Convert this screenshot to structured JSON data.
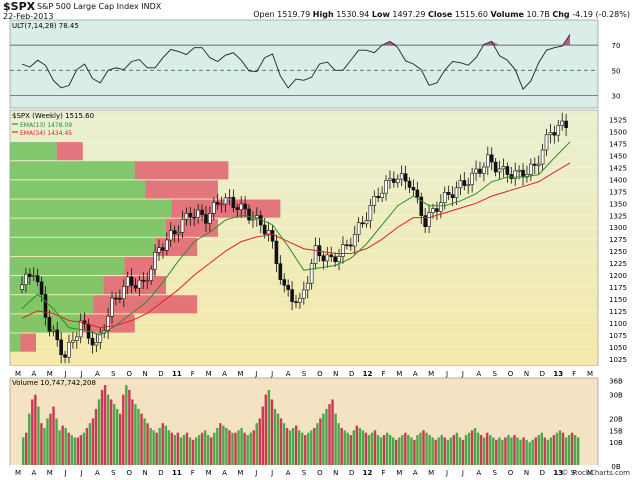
{
  "header": {
    "symbol": "$SPX",
    "description": "S&P 500 Large Cap Index INDX",
    "date": "22-Feb-2013",
    "quote": {
      "open_label": "Open",
      "open": "1519.79",
      "high_label": "High",
      "high": "1530.94",
      "low_label": "Low",
      "low": "1497.29",
      "close_label": "Close",
      "close": "1515.60",
      "volume_label": "Volume",
      "volume": "10.7B",
      "chg_label": "Chg",
      "chg": "-4.19 (-0.28%)"
    },
    "copyright": "© StockCharts.com"
  },
  "colors": {
    "panel_top_bg": "#d9ede9",
    "price_bg_top": "#e8f0d2",
    "price_bg_bottom": "#f5e8a8",
    "vol_bg": "#f4e3c2",
    "candle": "#111111",
    "ema13": "#2e8a2e",
    "ema34": "#e02020",
    "vbp_up": "#6fbf5b",
    "vbp_down": "#e06070",
    "vol_up": "#4aa84a",
    "vol_down": "#c83a56",
    "ult_fill": "#a8406c"
  },
  "chart_data": [
    {
      "type": "line",
      "panel": "indicator",
      "title": "ULT(7,14,28) 78.45",
      "ylim": [
        20,
        90
      ],
      "reference_lines": [
        30,
        50,
        70
      ],
      "tick_labels": [
        "70",
        "50",
        "30"
      ],
      "x": [
        "2010-03",
        "2010-04",
        "2010-05",
        "2010-06",
        "2010-07",
        "2010-08",
        "2010-09",
        "2010-10",
        "2010-11",
        "2010-12",
        "2011-01",
        "2011-02",
        "2011-03",
        "2011-04",
        "2011-05",
        "2011-06",
        "2011-07",
        "2011-08",
        "2011-09",
        "2011-10",
        "2011-11",
        "2011-12",
        "2012-01",
        "2012-02",
        "2012-03",
        "2012-04",
        "2012-05",
        "2012-06",
        "2012-07",
        "2012-08",
        "2012-09",
        "2012-10",
        "2012-11",
        "2012-12",
        "2013-01",
        "2013-02"
      ],
      "series": [
        {
          "values": [
            55,
            58,
            42,
            38,
            55,
            40,
            52,
            57,
            52,
            60,
            65,
            68,
            60,
            62,
            58,
            49,
            63,
            36,
            42,
            55,
            50,
            58,
            66,
            70,
            68,
            55,
            38,
            50,
            56,
            60,
            73,
            58,
            35,
            56,
            68,
            78.45
          ]
        }
      ]
    },
    {
      "type": "candlestick",
      "panel": "price",
      "title": "$SPX (Weekly) 1515.60",
      "legend": [
        {
          "name": "EMA(13) 1478.09",
          "color": "#2e8a2e"
        },
        {
          "name": "EMA(34) 1434.45",
          "color": "#e02020"
        }
      ],
      "ylim": [
        1010,
        1545
      ],
      "y_ticks": [
        1525,
        1500,
        1475,
        1450,
        1425,
        1400,
        1375,
        1350,
        1325,
        1300,
        1275,
        1250,
        1225,
        1200,
        1175,
        1150,
        1125,
        1100,
        1075,
        1050,
        1025
      ],
      "x": [
        "2010-03",
        "2010-04",
        "2010-05",
        "2010-06",
        "2010-07",
        "2010-08",
        "2010-09",
        "2010-10",
        "2010-11",
        "2010-12",
        "2011-01",
        "2011-02",
        "2011-03",
        "2011-04",
        "2011-05",
        "2011-06",
        "2011-07",
        "2011-08",
        "2011-09",
        "2011-10",
        "2011-11",
        "2011-12",
        "2012-01",
        "2012-02",
        "2012-03",
        "2012-04",
        "2012-05",
        "2012-06",
        "2012-07",
        "2012-08",
        "2012-09",
        "2012-10",
        "2012-11",
        "2012-12",
        "2013-01",
        "2013-02"
      ],
      "close": [
        1170,
        1210,
        1090,
        1030,
        1100,
        1050,
        1140,
        1185,
        1180,
        1255,
        1290,
        1330,
        1320,
        1360,
        1345,
        1320,
        1290,
        1170,
        1140,
        1250,
        1230,
        1260,
        1310,
        1370,
        1405,
        1395,
        1310,
        1355,
        1380,
        1405,
        1440,
        1415,
        1410,
        1425,
        1500,
        1515.6
      ],
      "ema13": [
        1130,
        1160,
        1130,
        1090,
        1085,
        1075,
        1095,
        1120,
        1145,
        1185,
        1230,
        1270,
        1290,
        1315,
        1325,
        1320,
        1305,
        1260,
        1210,
        1215,
        1220,
        1235,
        1265,
        1305,
        1345,
        1365,
        1345,
        1345,
        1355,
        1370,
        1395,
        1405,
        1405,
        1410,
        1445,
        1478.09
      ],
      "ema34": [
        1110,
        1125,
        1120,
        1105,
        1100,
        1090,
        1095,
        1105,
        1120,
        1145,
        1170,
        1200,
        1225,
        1250,
        1270,
        1280,
        1285,
        1270,
        1255,
        1250,
        1245,
        1245,
        1255,
        1275,
        1300,
        1320,
        1320,
        1330,
        1340,
        1350,
        1365,
        1375,
        1385,
        1395,
        1415,
        1434.45
      ]
    },
    {
      "type": "bar",
      "panel": "volume_by_price",
      "orientation": "horizontal",
      "price_zones": [
        1040,
        1080,
        1120,
        1160,
        1200,
        1240,
        1280,
        1320,
        1360,
        1400,
        1440
      ],
      "up_volume": [
        2,
        14,
        16,
        18,
        22,
        28,
        30,
        31,
        26,
        24,
        9
      ],
      "down_volume": [
        3,
        10,
        20,
        12,
        6,
        8,
        10,
        21,
        14,
        18,
        5
      ]
    },
    {
      "type": "bar",
      "panel": "volume",
      "title": "Volume 10,747,742,208",
      "y_ticks": [
        "36B",
        "30B",
        "20B",
        "15B",
        "10B",
        "0B"
      ],
      "ylim": [
        0,
        37
      ],
      "values": [
        12,
        14,
        22,
        28,
        30,
        25,
        18,
        16,
        20,
        22,
        25,
        20,
        15,
        17,
        16,
        14,
        13,
        12,
        12,
        13,
        14,
        16,
        18,
        20,
        24,
        28,
        32,
        34,
        30,
        28,
        26,
        24,
        22,
        30,
        34,
        32,
        28,
        26,
        24,
        22,
        20,
        18,
        16,
        15,
        14,
        16,
        18,
        17,
        15,
        14,
        13,
        14,
        12,
        13,
        14,
        12,
        11,
        12,
        13,
        14,
        15,
        13,
        12,
        14,
        16,
        18,
        17,
        16,
        15,
        14,
        14,
        15,
        16,
        14,
        13,
        14,
        15,
        18,
        20,
        25,
        30,
        32,
        28,
        24,
        22,
        20,
        18,
        16,
        15,
        16,
        17,
        15,
        14,
        13,
        14,
        15,
        16,
        18,
        20,
        22,
        24,
        26,
        28,
        22,
        18,
        16,
        15,
        14,
        13,
        15,
        17,
        16,
        15,
        14,
        13,
        14,
        15,
        13,
        12,
        13,
        14,
        13,
        12,
        11,
        12,
        13,
        14,
        13,
        12,
        11,
        13,
        14,
        15,
        14,
        13,
        12,
        11,
        12,
        13,
        12,
        11,
        12,
        13,
        14,
        12,
        11,
        13,
        14,
        15,
        16,
        14,
        13,
        12,
        14,
        13,
        12,
        11,
        12,
        11,
        12,
        13,
        12,
        13,
        12,
        11,
        12,
        11,
        10,
        11,
        12,
        13,
        14,
        12,
        11,
        12,
        13,
        14,
        15,
        14,
        12,
        13,
        14,
        13,
        12
      ],
      "up_down": [
        1,
        0,
        1,
        0,
        0,
        1,
        0,
        1,
        1,
        0,
        0,
        1,
        1,
        0,
        1,
        0,
        1,
        1,
        0,
        0,
        1,
        0,
        1,
        0,
        0,
        1,
        0,
        0,
        1,
        0,
        1,
        1,
        0,
        0,
        1,
        0,
        0,
        1,
        1,
        0,
        1,
        0,
        1,
        1,
        0,
        1,
        0,
        1,
        1,
        0,
        1,
        0,
        1,
        1,
        0,
        1,
        0,
        1,
        1,
        0,
        1,
        1,
        0,
        1,
        1,
        0,
        1,
        1,
        0,
        1,
        0,
        1,
        1,
        0,
        1,
        1,
        0,
        1,
        0,
        0,
        0,
        1,
        0,
        1,
        1,
        0,
        1,
        0,
        1,
        1,
        0,
        1,
        1,
        0,
        1,
        1,
        0,
        1,
        0,
        1,
        1,
        0,
        0,
        1,
        1,
        0,
        1,
        1,
        0,
        1,
        0,
        1,
        1,
        0,
        1,
        1,
        0,
        1,
        1,
        0,
        1,
        1,
        1,
        0,
        1,
        1,
        0,
        1,
        1,
        0,
        1,
        1,
        0,
        1,
        1,
        1,
        0,
        1,
        1,
        0,
        1,
        1,
        0,
        1,
        1,
        0,
        1,
        1,
        0,
        1,
        1,
        0,
        1,
        0,
        1,
        1,
        0,
        1,
        1,
        0,
        1,
        1,
        0,
        1,
        1,
        0,
        1,
        1,
        1,
        0,
        1,
        1,
        0,
        1,
        1,
        0,
        1,
        1,
        0,
        1,
        1,
        0,
        1,
        1
      ]
    }
  ],
  "x_axis": {
    "months": [
      "M",
      "A",
      "M",
      "J",
      "J",
      "A",
      "S",
      "O",
      "N",
      "D",
      "11",
      "F",
      "M",
      "A",
      "M",
      "J",
      "J",
      "A",
      "S",
      "O",
      "N",
      "D",
      "12",
      "F",
      "M",
      "A",
      "M",
      "J",
      "J",
      "A",
      "S",
      "O",
      "N",
      "D",
      "13",
      "F",
      "M"
    ]
  }
}
